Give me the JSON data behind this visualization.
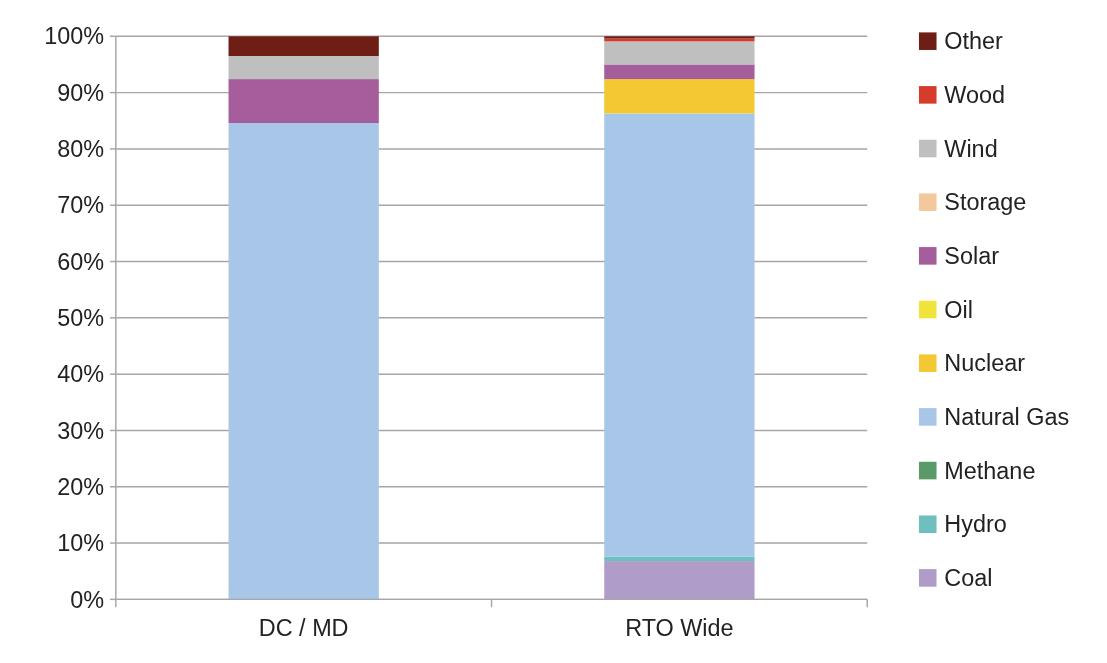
{
  "chart_data": {
    "type": "bar",
    "stacked": true,
    "categories": [
      "DC / MD",
      "RTO Wide"
    ],
    "series": [
      {
        "name": "Coal",
        "color": "#b09cc8",
        "values": [
          0,
          6.8
        ]
      },
      {
        "name": "Hydro",
        "color": "#6fbfbf",
        "values": [
          0,
          0.8
        ]
      },
      {
        "name": "Methane",
        "color": "#5a9a68",
        "values": [
          0,
          0
        ]
      },
      {
        "name": "Natural Gas",
        "color": "#a8c6e8",
        "values": [
          84.6,
          78.7
        ]
      },
      {
        "name": "Nuclear",
        "color": "#f3c832",
        "values": [
          0,
          6.1
        ]
      },
      {
        "name": "Oil",
        "color": "#f0e43c",
        "values": [
          0,
          0
        ]
      },
      {
        "name": "Solar",
        "color": "#a55d9c",
        "values": [
          7.8,
          2.6
        ]
      },
      {
        "name": "Storage",
        "color": "#f3c89c",
        "values": [
          0,
          0
        ]
      },
      {
        "name": "Wind",
        "color": "#bfbfbf",
        "values": [
          4.1,
          4.1
        ]
      },
      {
        "name": "Wood",
        "color": "#d63c2c",
        "values": [
          0,
          0.5
        ]
      },
      {
        "name": "Other",
        "color": "#6e1e14",
        "values": [
          3.5,
          0.4
        ]
      }
    ],
    "ylim": [
      0,
      100
    ],
    "yticks": [
      {
        "value": 0,
        "label": "0%"
      },
      {
        "value": 10,
        "label": "10%"
      },
      {
        "value": 20,
        "label": "20%"
      },
      {
        "value": 30,
        "label": "30%"
      },
      {
        "value": 40,
        "label": "40%"
      },
      {
        "value": 50,
        "label": "50%"
      },
      {
        "value": 60,
        "label": "60%"
      },
      {
        "value": 70,
        "label": "70%"
      },
      {
        "value": 80,
        "label": "80%"
      },
      {
        "value": 90,
        "label": "90%"
      },
      {
        "value": 100,
        "label": "100%"
      }
    ],
    "grid": "y",
    "legend": "right"
  }
}
